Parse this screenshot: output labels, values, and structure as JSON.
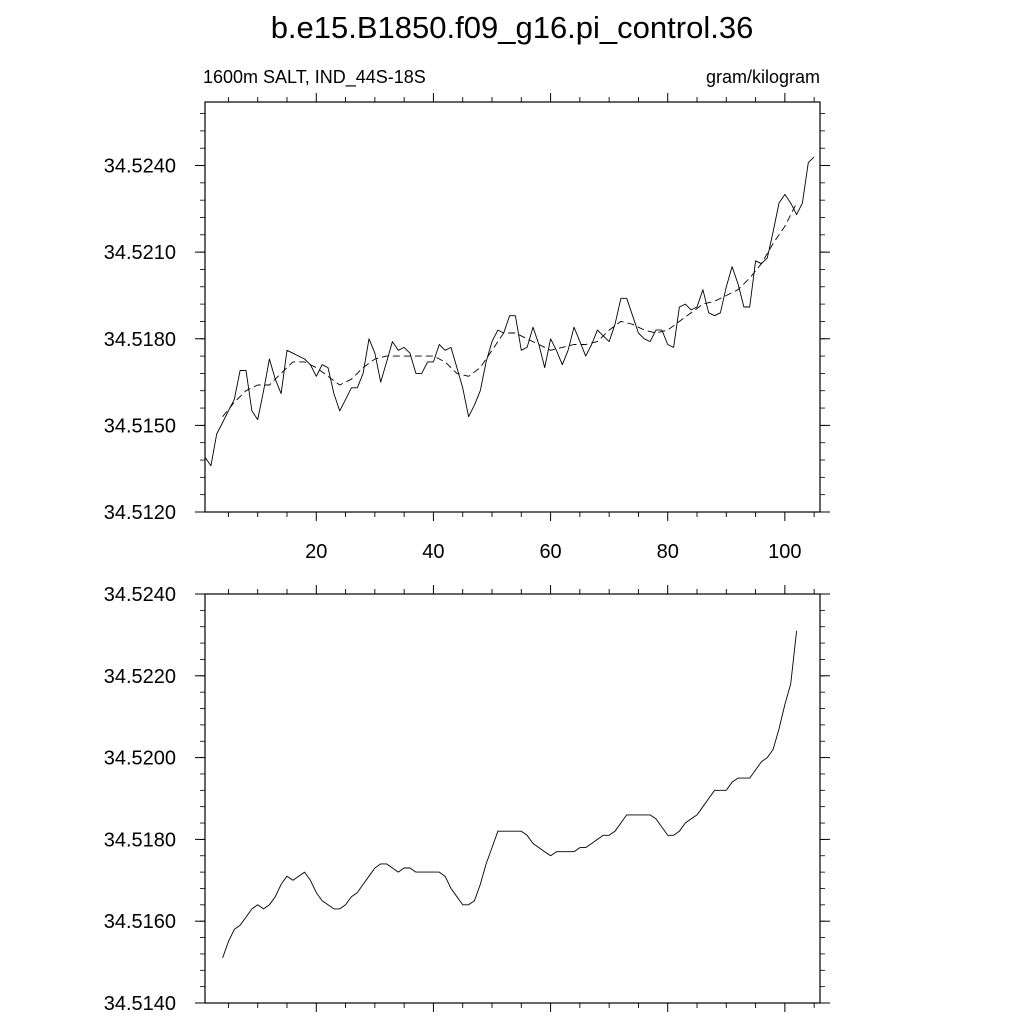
{
  "title": "b.e15.B1850.f09_g16.pi_control.36",
  "chart_data": [
    {
      "type": "line",
      "left_label": "1600m SALT, IND_44S-18S",
      "right_label": "gram/kilogram",
      "xlim": [
        1,
        106
      ],
      "ylim": [
        34.512,
        34.5262
      ],
      "xticks": [
        20,
        40,
        60,
        80,
        100
      ],
      "yticks": [
        34.512,
        34.515,
        34.518,
        34.521,
        34.524
      ],
      "ytick_labels": [
        "34.5120",
        "34.5150",
        "34.5180",
        "34.5210",
        "34.5240"
      ],
      "series": [
        {
          "style": "solid",
          "x": [
            1,
            2,
            3,
            4,
            5,
            6,
            7,
            8,
            9,
            10,
            11,
            12,
            13,
            14,
            15,
            16,
            17,
            18,
            19,
            20,
            21,
            22,
            23,
            24,
            25,
            26,
            27,
            28,
            29,
            30,
            31,
            32,
            33,
            34,
            35,
            36,
            37,
            38,
            39,
            40,
            41,
            42,
            43,
            44,
            45,
            46,
            47,
            48,
            49,
            50,
            51,
            52,
            53,
            54,
            55,
            56,
            57,
            58,
            59,
            60,
            61,
            62,
            63,
            64,
            65,
            66,
            67,
            68,
            69,
            70,
            71,
            72,
            73,
            74,
            75,
            76,
            77,
            78,
            79,
            80,
            81,
            82,
            83,
            84,
            85,
            86,
            87,
            88,
            89,
            90,
            91,
            92,
            93,
            94,
            95,
            96,
            97,
            98,
            99,
            100,
            101,
            102,
            103,
            104,
            105
          ],
          "values": [
            34.5139,
            34.5136,
            34.5147,
            34.5151,
            34.5155,
            34.5159,
            34.5169,
            34.5169,
            34.5155,
            34.5152,
            34.5162,
            34.5173,
            34.5166,
            34.5161,
            34.5176,
            34.5175,
            34.5174,
            34.5173,
            34.5171,
            34.5167,
            34.5171,
            34.517,
            34.5161,
            34.5155,
            34.5159,
            34.5163,
            34.5163,
            34.5168,
            34.518,
            34.5175,
            34.5165,
            34.5172,
            34.5179,
            34.5176,
            34.5177,
            34.5175,
            34.5168,
            34.5168,
            34.5172,
            34.5172,
            34.5178,
            34.5176,
            34.5177,
            34.517,
            34.5163,
            34.5153,
            34.5157,
            34.5162,
            34.5172,
            34.5179,
            34.5183,
            34.5182,
            34.5188,
            34.5188,
            34.5176,
            34.5177,
            34.5184,
            34.5178,
            34.517,
            34.518,
            34.5176,
            34.5171,
            34.5176,
            34.5184,
            34.5179,
            34.5174,
            34.5178,
            34.5183,
            34.5181,
            34.5179,
            34.5185,
            34.5194,
            34.5194,
            34.5188,
            34.5182,
            34.518,
            34.5179,
            34.5183,
            34.5183,
            34.5178,
            34.5177,
            34.5191,
            34.5192,
            34.519,
            34.5191,
            34.5197,
            34.5189,
            34.5188,
            34.5189,
            34.5198,
            34.5205,
            34.5199,
            34.5191,
            34.5191,
            34.5207,
            34.5206,
            34.5208,
            34.5217,
            34.5227,
            34.523,
            34.5227,
            34.5223,
            34.5227,
            34.5241,
            34.5243
          ]
        },
        {
          "style": "dashed",
          "x": [
            4,
            6,
            8,
            10,
            12,
            14,
            16,
            18,
            20,
            22,
            24,
            26,
            28,
            30,
            32,
            34,
            36,
            38,
            40,
            42,
            44,
            46,
            48,
            50,
            52,
            54,
            56,
            58,
            60,
            62,
            64,
            66,
            68,
            70,
            72,
            74,
            76,
            78,
            80,
            82,
            84,
            86,
            88,
            90,
            92,
            94,
            96,
            98,
            100,
            102
          ],
          "values": [
            34.5153,
            34.5158,
            34.5162,
            34.5164,
            34.5164,
            34.5168,
            34.5172,
            34.5172,
            34.517,
            34.5167,
            34.5164,
            34.5166,
            34.517,
            34.5173,
            34.5174,
            34.5174,
            34.5174,
            34.5174,
            34.5174,
            34.5172,
            34.5168,
            34.5167,
            34.517,
            34.5176,
            34.5182,
            34.5182,
            34.518,
            34.5178,
            34.5176,
            34.5177,
            34.5178,
            34.5178,
            34.5179,
            34.5183,
            34.5186,
            34.5185,
            34.5183,
            34.5182,
            34.5183,
            34.5186,
            34.5189,
            34.5192,
            34.5193,
            34.5195,
            34.5197,
            34.5201,
            34.5206,
            34.5213,
            34.5219,
            34.5227
          ]
        }
      ]
    },
    {
      "type": "line",
      "xlim": [
        1,
        106
      ],
      "ylim": [
        34.514,
        34.524
      ],
      "xticks": [
        20,
        40,
        60,
        80,
        100
      ],
      "yticks": [
        34.514,
        34.516,
        34.518,
        34.52,
        34.522,
        34.524
      ],
      "ytick_labels": [
        "34.5140",
        "34.5160",
        "34.5180",
        "34.5200",
        "34.5220",
        "34.5240"
      ],
      "series": [
        {
          "style": "solid",
          "x": [
            4,
            5,
            6,
            7,
            8,
            9,
            10,
            11,
            12,
            13,
            14,
            15,
            16,
            17,
            18,
            19,
            20,
            21,
            22,
            23,
            24,
            25,
            26,
            27,
            28,
            29,
            30,
            31,
            32,
            33,
            34,
            35,
            36,
            37,
            38,
            39,
            40,
            41,
            42,
            43,
            44,
            45,
            46,
            47,
            48,
            49,
            50,
            51,
            52,
            53,
            54,
            55,
            56,
            57,
            58,
            59,
            60,
            61,
            62,
            63,
            64,
            65,
            66,
            67,
            68,
            69,
            70,
            71,
            72,
            73,
            74,
            75,
            76,
            77,
            78,
            79,
            80,
            81,
            82,
            83,
            84,
            85,
            86,
            87,
            88,
            89,
            90,
            91,
            92,
            93,
            94,
            95,
            96,
            97,
            98,
            99,
            100,
            101,
            102
          ],
          "values": [
            34.5151,
            34.5155,
            34.5158,
            34.5159,
            34.5161,
            34.5163,
            34.5164,
            34.5163,
            34.5164,
            34.5166,
            34.5169,
            34.5171,
            34.517,
            34.5171,
            34.5172,
            34.517,
            34.5167,
            34.5165,
            34.5164,
            34.5163,
            34.5163,
            34.5164,
            34.5166,
            34.5167,
            34.5169,
            34.5171,
            34.5173,
            34.5174,
            34.5174,
            34.5173,
            34.5172,
            34.5173,
            34.5173,
            34.5172,
            34.5172,
            34.5172,
            34.5172,
            34.5172,
            34.5171,
            34.5168,
            34.5166,
            34.5164,
            34.5164,
            34.5165,
            34.5169,
            34.5174,
            34.5178,
            34.5182,
            34.5182,
            34.5182,
            34.5182,
            34.5182,
            34.5181,
            34.5179,
            34.5178,
            34.5177,
            34.5176,
            34.5177,
            34.5177,
            34.5177,
            34.5177,
            34.5178,
            34.5178,
            34.5179,
            34.518,
            34.5181,
            34.5181,
            34.5182,
            34.5184,
            34.5186,
            34.5186,
            34.5186,
            34.5186,
            34.5186,
            34.5185,
            34.5183,
            34.5181,
            34.5181,
            34.5182,
            34.5184,
            34.5185,
            34.5186,
            34.5188,
            34.519,
            34.5192,
            34.5192,
            34.5192,
            34.5194,
            34.5195,
            34.5195,
            34.5195,
            34.5197,
            34.5199,
            34.52,
            34.5202,
            34.5207,
            34.5213,
            34.5218,
            34.5231
          ]
        }
      ]
    }
  ]
}
